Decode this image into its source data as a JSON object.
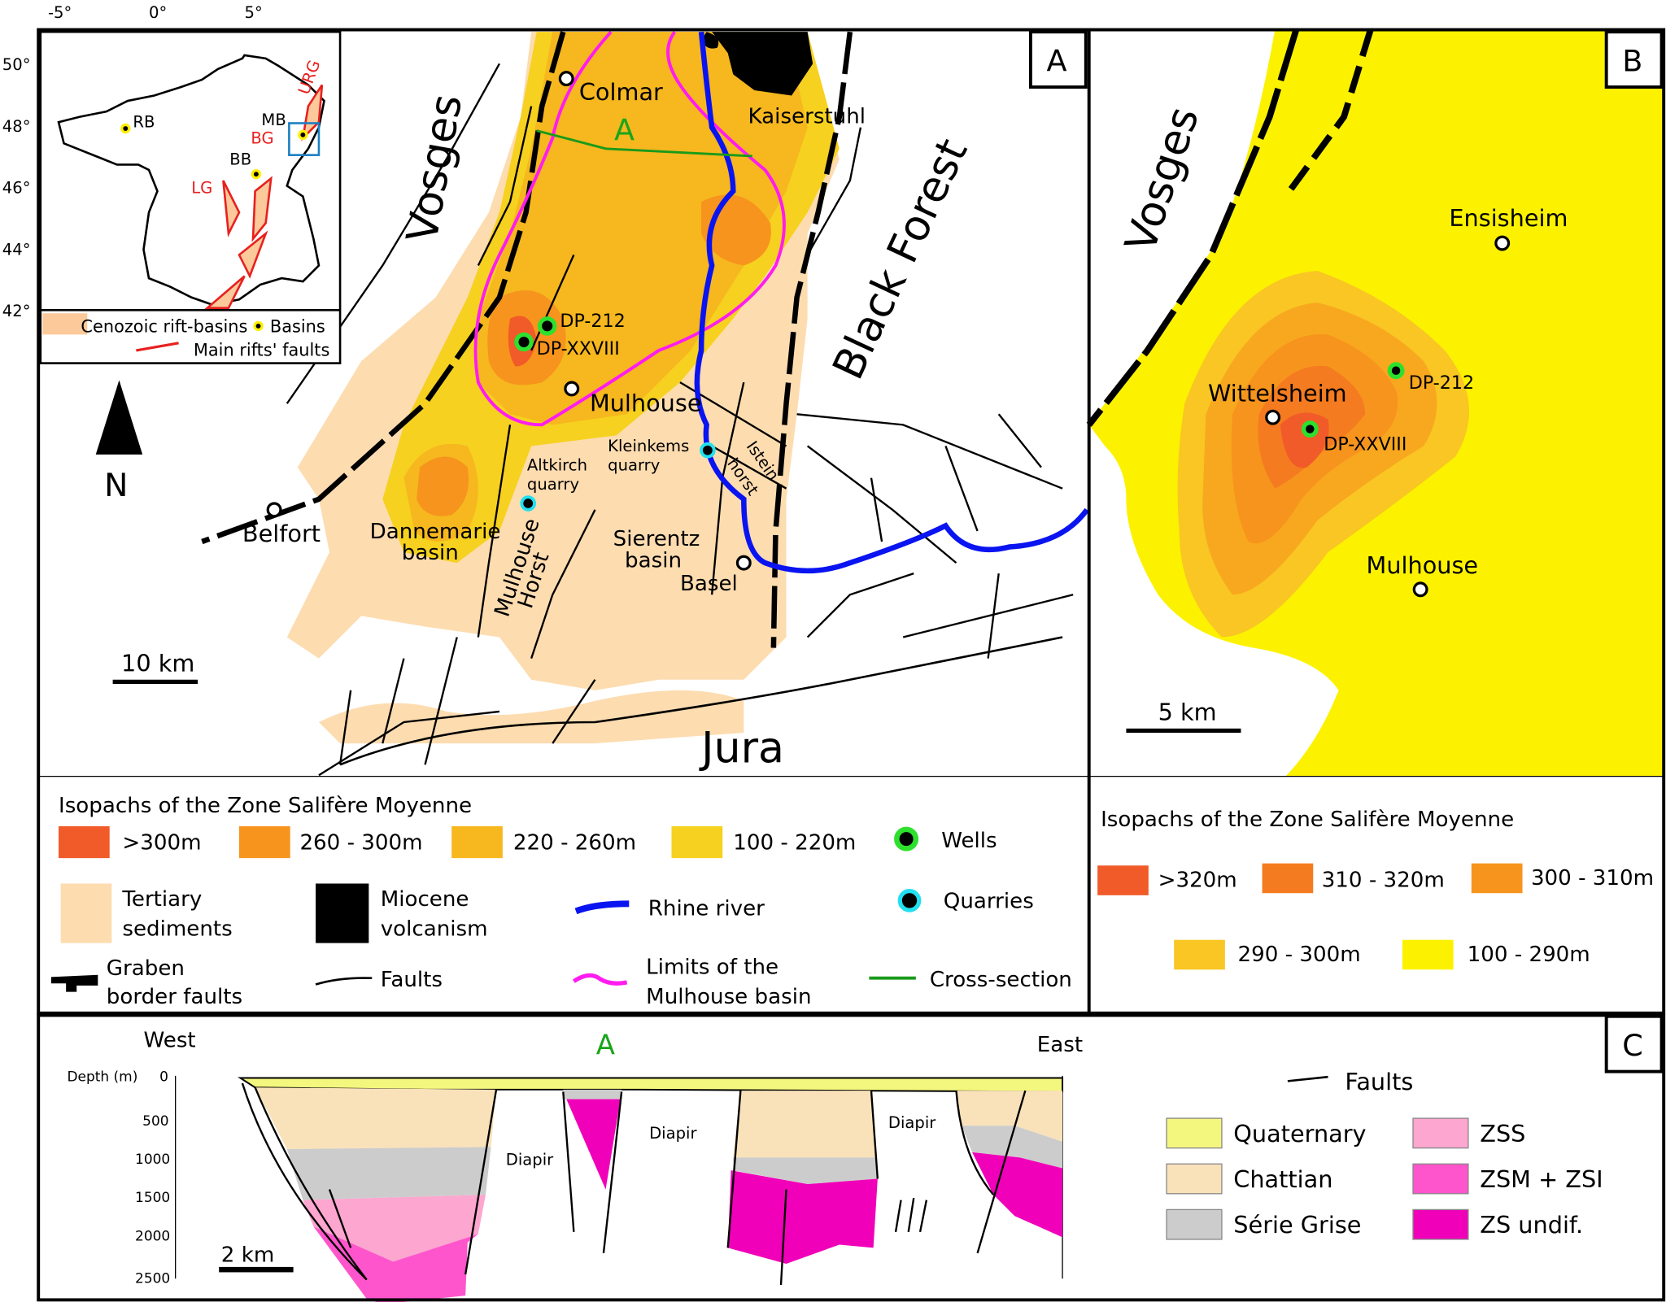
{
  "colors": {
    "iso_gt300": "#f15a29",
    "iso_260_300": "#f7941d",
    "iso_220_260": "#f6b71f",
    "iso_100_220": "#f6d11f",
    "tertiary": "#fddcb0",
    "volcanism": "#000000",
    "rhine": "#0a14f0",
    "mulhouse_limit": "#ff1cf0",
    "cross_section": "#1a9a1a",
    "b_gt320": "#f15a29",
    "b_310_320": "#f47b20",
    "b_300_310": "#f7941d",
    "b_290_300": "#f9c623",
    "b_100_290": "#fcf200",
    "quaternary": "#f4f77e",
    "chattian": "#f9e2b9",
    "serie_grise": "#cccccc",
    "zss": "#fda6cf",
    "zsm_zsi": "#ff55cc",
    "zs_undif": "#f000b8",
    "inset_box": "#1e7fc4"
  },
  "panel_a": {
    "label": "A",
    "inset": {
      "lon_ticks": [
        "-5°",
        "0°",
        "5°"
      ],
      "lat_ticks": [
        "50°",
        "48°",
        "46°",
        "44°",
        "42°"
      ],
      "labels": {
        "rb": "RB",
        "mb": "MB",
        "bb": "BB",
        "bg": "BG",
        "lg": "LG",
        "urg": "URG"
      },
      "legend": {
        "rift_basins": "Cenozoic rift-basins",
        "basins": "Basins",
        "faults": "Main rifts' faults"
      }
    },
    "north": "N",
    "scale": "10 km",
    "places": {
      "vosges": "Vosges",
      "colmar": "Colmar",
      "section_a": "A",
      "kaiserstuhl": "Kaiserstuhl",
      "black_forest": "Black Forest",
      "dp212": "DP-212",
      "dpxxviii": "DP-XXVIII",
      "mulhouse": "Mulhouse",
      "kleinkems": "Kleinkems",
      "kleinkems2": "quarry",
      "istein": "Istein",
      "istein2": "horst",
      "altkirch": "Altkirch",
      "altkirch2": "quarry",
      "belfort": "Belfort",
      "dannemarie": "Dannemarie",
      "dannemarie2": "basin",
      "mulhouse_horst": "Mulhouse",
      "mulhouse_horst2": "Horst",
      "sierentz": "Sierentz",
      "sierentz2": "basin",
      "basel": "Basel",
      "jura": "Jura"
    },
    "legend": {
      "title": "Isopachs of the Zone Salifère Moyenne",
      "iso": [
        ">300m",
        "260 - 300m",
        "220 - 260m",
        "100 - 220m"
      ],
      "wells": "Wells",
      "quarries": "Quarries",
      "tertiary": [
        "Tertiary",
        "sediments"
      ],
      "miocene": [
        "Miocene",
        "volcanism"
      ],
      "rhine": "Rhine river",
      "graben": [
        "Graben",
        "border faults"
      ],
      "faults": "Faults",
      "limits": [
        "Limits of the",
        "Mulhouse basin"
      ],
      "cross_section": "Cross-section"
    }
  },
  "panel_b": {
    "label": "B",
    "places": {
      "vosges": "Vosges",
      "ensisheim": "Ensisheim",
      "wittelsheim": "Wittelsheim",
      "dp212": "DP-212",
      "dpxxviii": "DP-XXVIII",
      "mulhouse": "Mulhouse"
    },
    "scale": "5 km",
    "legend": {
      "title": "Isopachs of the Zone Salifère Moyenne",
      "iso": [
        ">320m",
        "310 - 320m",
        "300 - 310m",
        "290 - 300m",
        "100 - 290m"
      ]
    }
  },
  "panel_c": {
    "label": "C",
    "west": "West",
    "east": "East",
    "section": "A",
    "depth_label": "Depth (m)",
    "depth_ticks": [
      "0",
      "500",
      "1000",
      "1500",
      "2000",
      "2500"
    ],
    "diapir": "Diapir",
    "scale": "2 km",
    "legend": {
      "faults": "Faults",
      "quaternary": "Quaternary",
      "chattian": "Chattian",
      "serie_grise": "Série Grise",
      "zss": "ZSS",
      "zsm_zsi": "ZSM + ZSI",
      "zs_undif": "ZS undif."
    }
  }
}
